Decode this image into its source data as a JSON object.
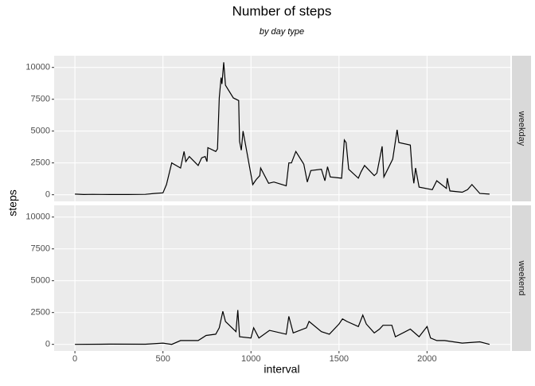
{
  "chart_data": {
    "type": "line",
    "title": "Number of steps",
    "subtitle": "by day type",
    "x_label": "interval",
    "y_label": "steps",
    "xlim": [
      -118,
      2473
    ],
    "xticks": [
      0,
      500,
      1000,
      1500,
      2000
    ],
    "ylim": [
      -520,
      10920
    ],
    "yticks": [
      0,
      2500,
      5000,
      7500,
      10000
    ],
    "grid": true,
    "series": [
      {
        "name": "weekday",
        "color": "#000000",
        "x": [
          0,
          50,
          100,
          200,
          300,
          400,
          450,
          500,
          520,
          550,
          600,
          620,
          630,
          650,
          700,
          720,
          740,
          750,
          755,
          800,
          810,
          820,
          830,
          835,
          845,
          855,
          900,
          930,
          935,
          945,
          955,
          1010,
          1030,
          1050,
          1055,
          1100,
          1130,
          1200,
          1215,
          1230,
          1255,
          1300,
          1320,
          1340,
          1400,
          1420,
          1435,
          1450,
          1515,
          1530,
          1540,
          1555,
          1610,
          1625,
          1645,
          1700,
          1715,
          1745,
          1755,
          1805,
          1830,
          1840,
          1905,
          1915,
          1925,
          1935,
          1955,
          2030,
          2055,
          2110,
          2115,
          2130,
          2200,
          2230,
          2255,
          2300,
          2355
        ],
        "values": [
          50,
          20,
          30,
          20,
          20,
          30,
          100,
          150,
          800,
          2500,
          2100,
          3400,
          2600,
          3000,
          2300,
          2900,
          3000,
          2600,
          3700,
          3400,
          3600,
          7600,
          9200,
          8700,
          10400,
          8600,
          7600,
          7400,
          4200,
          3500,
          5000,
          800,
          1200,
          1500,
          2100,
          900,
          1000,
          700,
          2500,
          2500,
          3400,
          2400,
          1000,
          1900,
          2000,
          1100,
          2200,
          1400,
          1300,
          4300,
          4100,
          2000,
          1300,
          1800,
          2300,
          1500,
          1700,
          3800,
          1400,
          2800,
          5100,
          4100,
          3900,
          2000,
          900,
          2100,
          600,
          400,
          1100,
          500,
          1300,
          300,
          200,
          400,
          800,
          100,
          50
        ]
      },
      {
        "name": "weekend",
        "color": "#000000",
        "x": [
          0,
          200,
          400,
          500,
          550,
          600,
          700,
          745,
          800,
          820,
          840,
          855,
          915,
          925,
          935,
          1000,
          1015,
          1045,
          1105,
          1200,
          1215,
          1240,
          1315,
          1330,
          1400,
          1445,
          1500,
          1520,
          1545,
          1610,
          1635,
          1655,
          1700,
          1730,
          1750,
          1800,
          1820,
          1905,
          1955,
          2000,
          2020,
          2055,
          2100,
          2200,
          2300,
          2355
        ],
        "values": [
          0,
          20,
          10,
          100,
          0,
          300,
          300,
          700,
          800,
          1300,
          2600,
          1800,
          1000,
          2700,
          600,
          500,
          1300,
          500,
          1100,
          800,
          2200,
          900,
          1300,
          1800,
          1000,
          800,
          1600,
          2000,
          1800,
          1400,
          2300,
          1600,
          900,
          1200,
          1500,
          1500,
          600,
          1200,
          600,
          1400,
          500,
          300,
          300,
          100,
          200,
          0
        ]
      }
    ]
  }
}
